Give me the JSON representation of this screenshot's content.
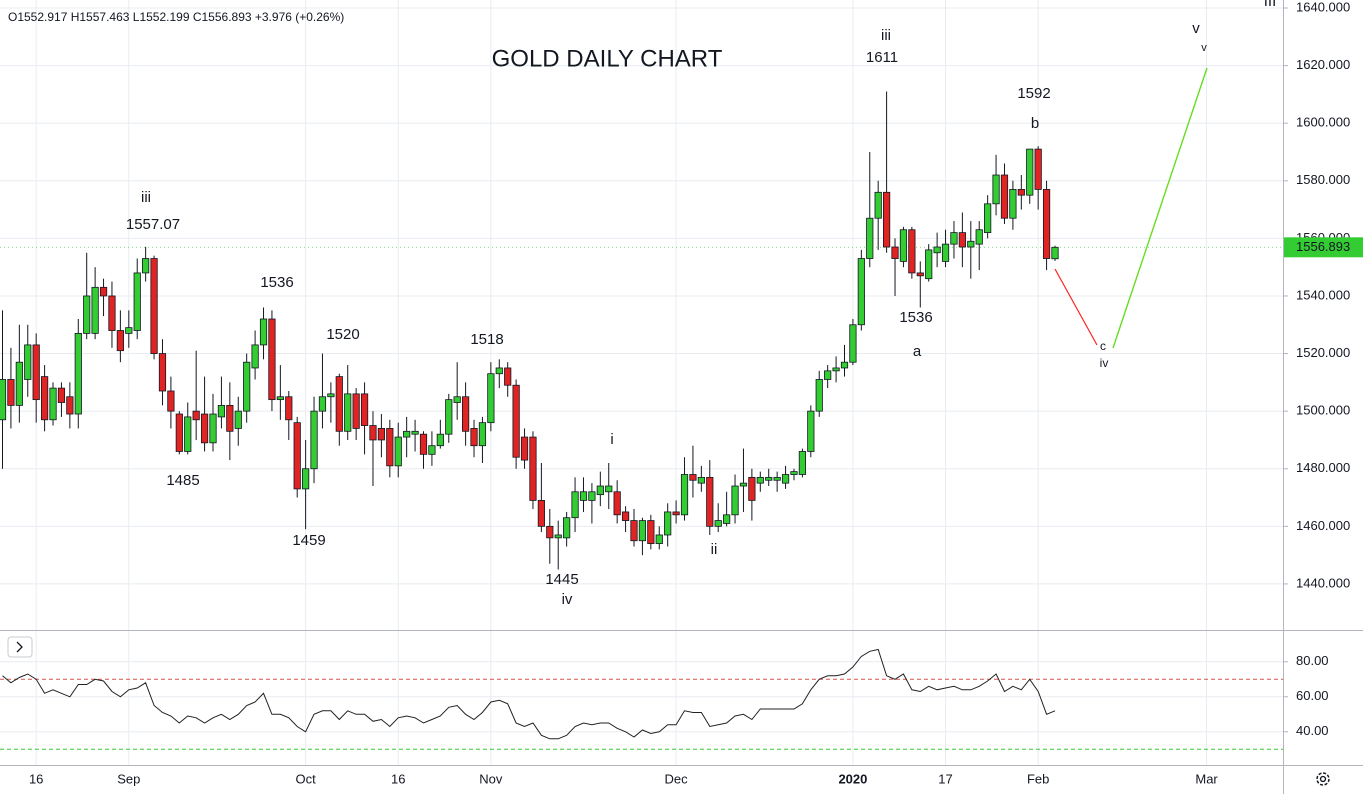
{
  "chart_data": [
    {
      "type": "candlestick",
      "title": "GOLD DAILY CHART",
      "header": "O1552.917 H1557.463 L1552.199 C1556.893 +3.976 (+0.26%)",
      "annotations": [
        "iii",
        "1557.07",
        "1536",
        "1520",
        "1485",
        "1459",
        "1518",
        "1445",
        "iv",
        "i",
        "ii",
        "iii",
        "1611",
        "1592",
        "b",
        "1536",
        "a",
        "c",
        "iv",
        "v",
        "v",
        "III"
      ],
      "categories": [
        null,
        null,
        null,
        null,
        "16",
        null,
        null,
        null,
        null,
        null,
        null,
        null,
        null,
        null,
        null,
        "Sep",
        null,
        null,
        null,
        null,
        null,
        null,
        null,
        null,
        null,
        null,
        null,
        null,
        null,
        null,
        null,
        null,
        null,
        null,
        null,
        null,
        "Oct",
        null,
        null,
        null,
        null,
        null,
        null,
        null,
        null,
        null,
        null,
        "16",
        null,
        null,
        null,
        null,
        null,
        null,
        null,
        null,
        null,
        null,
        "Nov",
        null,
        null,
        null,
        null,
        null,
        null,
        null,
        null,
        null,
        null,
        null,
        null,
        null,
        null,
        null,
        null,
        null,
        null,
        null,
        null,
        null,
        "Dec",
        null,
        null,
        null,
        null,
        null,
        null,
        null,
        null,
        null,
        null,
        null,
        null,
        null,
        null,
        null,
        null,
        null,
        null,
        null,
        null,
        "2020",
        null,
        null,
        null,
        null,
        null,
        null,
        null,
        null,
        null,
        null,
        "17",
        null,
        null,
        null,
        null,
        null,
        null,
        null,
        null,
        null,
        null,
        "Feb",
        null,
        null,
        null,
        null,
        null,
        null,
        null,
        null,
        null,
        null,
        null,
        null,
        null,
        null,
        null,
        null,
        null,
        null,
        null,
        "Mar"
      ],
      "open": [
        1497,
        1511,
        1502,
        1511,
        1523,
        1512,
        1497,
        1508,
        1505,
        1499,
        1527,
        1527,
        1543,
        1540,
        1528,
        1527,
        1528,
        1548,
        1553,
        1520,
        1507,
        1499,
        1486,
        1500,
        1499,
        1489,
        1498,
        1502,
        1494,
        1500,
        1515,
        1523,
        1532,
        1504,
        1505,
        1496,
        1473,
        1480,
        1500,
        1505,
        1512,
        1493,
        1506,
        1506,
        1495,
        1494,
        1494,
        1481,
        1491,
        1492,
        1492,
        1485,
        1488,
        1492,
        1503,
        1505,
        1494,
        1488,
        1496,
        1513,
        1515,
        1509,
        1491,
        1491,
        1469,
        1460,
        1456,
        1456,
        1463,
        1469,
        1469,
        1471,
        1472,
        1472,
        1465,
        1462,
        1455,
        1462,
        1454,
        1457,
        1465,
        1464,
        1478,
        1475,
        1477,
        1460,
        1461,
        1464,
        1474,
        1477,
        1475,
        1476,
        1476,
        1475,
        1478,
        1478,
        1486,
        1500,
        1511,
        1514,
        1515,
        1517,
        1530,
        1553,
        1567,
        1576,
        1557,
        1552,
        1563,
        1548,
        1546,
        1555,
        1552,
        1558,
        1562,
        1557,
        1558,
        1562,
        1572,
        1582,
        1567,
        1577,
        1575,
        1591,
        1577,
        1552.917,
        null,
        null,
        null,
        null,
        null,
        null,
        null,
        null,
        null,
        null,
        null,
        null,
        null,
        null,
        null,
        null,
        null,
        null
      ],
      "high": [
        1535,
        1522,
        1530,
        1530,
        1527,
        1516,
        1510,
        1510,
        1510,
        1532,
        1555,
        1550,
        1546,
        1545,
        1535,
        1535,
        1553,
        1557.07,
        1554,
        1525,
        1512,
        1500,
        1503,
        1521,
        1512,
        1506,
        1512,
        1510,
        1505,
        1520,
        1528,
        1536,
        1535,
        1516,
        1507,
        1498,
        1490,
        1505,
        1520,
        1510,
        1513,
        1516,
        1508,
        1510,
        1500,
        1499,
        1497,
        1496,
        1498,
        1497,
        1493,
        1493,
        1497,
        1506,
        1517,
        1510,
        1497,
        1498,
        1517,
        1518,
        1517,
        1511,
        1494,
        1493,
        1482,
        1466,
        1462,
        1465,
        1477,
        1477,
        1475,
        1479,
        1482,
        1476,
        1467,
        1466,
        1463,
        1464,
        1460,
        1468,
        1469,
        1484,
        1488,
        1481,
        1483,
        1468,
        1472,
        1478,
        1487,
        1480,
        1479,
        1480,
        1479,
        1481,
        1480,
        1487,
        1502,
        1514,
        1516,
        1519,
        1523,
        1532,
        1556,
        1590,
        1580,
        1611,
        1560,
        1564,
        1564,
        1552,
        1558,
        1562,
        1563,
        1566,
        1569,
        1566,
        1566,
        1575,
        1589,
        1586,
        1580,
        1582,
        1591,
        1592,
        1580,
        1557.463,
        null,
        null,
        null,
        null,
        null,
        null,
        null,
        null,
        null,
        null,
        null,
        null,
        null,
        null,
        null,
        null,
        null,
        null
      ],
      "low": [
        1480,
        1494,
        1496,
        1505,
        1496,
        1493,
        1495,
        1498,
        1494,
        1494,
        1525,
        1525,
        1533,
        1522,
        1517,
        1522,
        1525,
        1545,
        1518,
        1502,
        1494,
        1485,
        1485,
        1490,
        1486,
        1486,
        1494,
        1483,
        1488,
        1496,
        1511,
        1518,
        1500,
        1497,
        1490,
        1470,
        1459,
        1475,
        1494,
        1496,
        1488,
        1490,
        1490,
        1485,
        1474,
        1484,
        1477,
        1477,
        1484,
        1486,
        1480,
        1481,
        1487,
        1489,
        1497,
        1488,
        1484,
        1482,
        1493,
        1508,
        1505,
        1480,
        1480,
        1466,
        1458,
        1447,
        1445,
        1453,
        1458,
        1465,
        1461,
        1467,
        1466,
        1461,
        1458,
        1453,
        1450,
        1452,
        1452,
        1453,
        1461,
        1462,
        1470,
        1472,
        1457,
        1458,
        1460,
        1461,
        1465,
        1462,
        1472,
        1474,
        1472,
        1473,
        1476,
        1477,
        1484,
        1498,
        1508,
        1510,
        1512,
        1516,
        1528,
        1550,
        1556,
        1555,
        1540,
        1550,
        1546,
        1536,
        1545,
        1550,
        1550,
        1553,
        1550,
        1546,
        1549,
        1560,
        1568,
        1565,
        1563,
        1570,
        1572,
        1570,
        1549,
        1552.199,
        null,
        null,
        null,
        null,
        null,
        null,
        null,
        null,
        null,
        null,
        null,
        null,
        null,
        null,
        null,
        null,
        null,
        null
      ],
      "close": [
        1511,
        1502,
        1517,
        1523,
        1504,
        1497,
        1508,
        1503,
        1499,
        1527,
        1540,
        1543,
        1540,
        1528,
        1521,
        1529,
        1548,
        1553,
        1520,
        1507,
        1500,
        1486,
        1498,
        1497,
        1489,
        1499,
        1502,
        1493,
        1500,
        1517,
        1523,
        1532,
        1504,
        1505,
        1497,
        1473,
        1480,
        1500,
        1505,
        1506,
        1493,
        1506,
        1494,
        1495,
        1490,
        1490,
        1481,
        1491,
        1493,
        1493,
        1485,
        1488,
        1492,
        1504,
        1505,
        1493,
        1488,
        1496,
        1513,
        1515,
        1509,
        1484,
        1483,
        1469,
        1460,
        1456,
        1457,
        1463,
        1472,
        1472,
        1472,
        1474,
        1474,
        1464,
        1462,
        1455,
        1462,
        1454,
        1457,
        1465,
        1464,
        1478,
        1476,
        1477,
        1460,
        1462,
        1464,
        1474,
        1475,
        1469,
        1477,
        1477,
        1477,
        1478,
        1479,
        1486,
        1500,
        1511,
        1514,
        1515,
        1517,
        1530,
        1553,
        1567,
        1576,
        1557,
        1553,
        1563,
        1548,
        1547,
        1556,
        1557,
        1558,
        1562,
        1557,
        1559,
        1563,
        1572,
        1582,
        1567,
        1577,
        1575,
        1591,
        1577,
        1553,
        1556.893,
        null,
        null,
        null,
        null,
        null,
        null,
        null,
        null,
        null,
        null,
        null,
        null,
        null,
        null,
        null,
        null,
        null,
        null
      ],
      "up_color": "#33cc33",
      "down_color": "#e02424",
      "ylim": [
        1424,
        1640
      ],
      "yticks": [
        {
          "value": 1440,
          "label": "1440.000"
        },
        {
          "value": 1460,
          "label": "1460.000"
        },
        {
          "value": 1480,
          "label": "1480.000"
        },
        {
          "value": 1500,
          "label": "1500.000"
        },
        {
          "value": 1520,
          "label": "1520.000"
        },
        {
          "value": 1540,
          "label": "1540.000"
        },
        {
          "value": 1560,
          "label": "1560.000"
        },
        {
          "value": 1580,
          "label": "1580.000"
        },
        {
          "value": 1600,
          "label": "1600.000"
        },
        {
          "value": 1620,
          "label": "1620.000"
        },
        {
          "value": 1640,
          "label": "1640.000"
        }
      ],
      "grid": true
    },
    {
      "type": "line",
      "values": [
        72,
        68,
        71,
        73,
        70,
        62,
        64,
        62,
        60,
        67,
        67,
        70,
        69,
        63,
        60,
        64,
        65,
        68,
        55,
        51,
        49,
        45,
        49,
        48,
        45,
        48,
        50,
        47,
        50,
        55,
        57,
        62,
        50,
        50,
        48,
        43,
        40,
        50,
        52,
        52,
        47,
        52,
        50,
        50,
        46,
        47,
        43,
        48,
        49,
        48,
        45,
        47,
        49,
        54,
        55,
        50,
        47,
        51,
        57,
        58,
        56,
        45,
        43,
        45,
        38,
        36,
        36,
        38,
        43,
        45,
        44,
        45,
        45,
        42,
        40,
        37,
        41,
        39,
        40,
        44,
        44,
        52,
        51,
        51,
        43,
        44,
        45,
        49,
        50,
        47,
        53,
        53,
        53,
        53,
        53,
        56,
        64,
        70,
        72,
        72,
        73,
        77,
        83,
        86,
        87,
        72,
        70,
        73,
        64,
        63,
        66,
        64,
        65,
        66,
        64,
        64,
        66,
        69,
        73,
        63,
        66,
        64,
        70,
        63,
        50,
        52,
        null,
        null,
        null,
        null,
        null,
        null,
        null,
        null,
        null,
        null,
        null,
        null,
        null,
        null,
        null,
        null,
        null,
        null
      ],
      "color": "#222222",
      "levels": [
        70,
        30
      ],
      "level_colors": [
        "#d9534f",
        "#33cc33"
      ],
      "ylim": [
        21,
        97
      ],
      "yticks": [
        {
          "value": 40,
          "label": "40.00"
        },
        {
          "value": 60,
          "label": "60.00"
        },
        {
          "value": 80,
          "label": "80.00"
        }
      ],
      "grid": true
    }
  ]
}
